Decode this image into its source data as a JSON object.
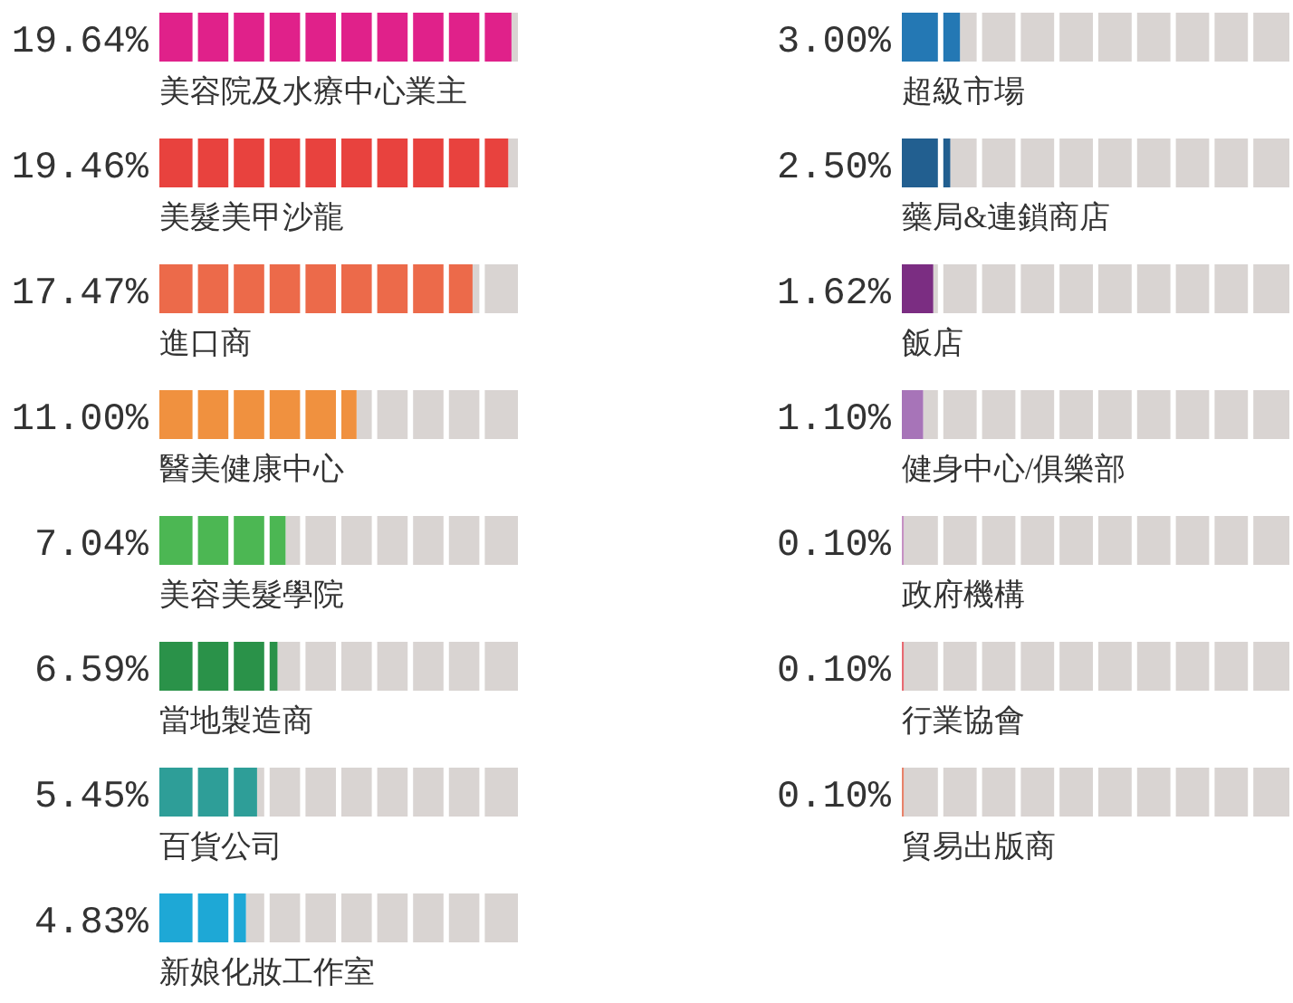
{
  "chart_data": [
    {
      "type": "bar",
      "orientation": "horizontal",
      "xlim": [
        0,
        20
      ],
      "tick_labels": "y",
      "categories": [
        "美容院及水療中心業主",
        "美髮美甲沙龍",
        "進口商",
        "醫美健康中心",
        "美容美髮學院",
        "當地製造商",
        "百貨公司",
        "新娘化妝工作室"
      ],
      "values": [
        19.64,
        19.46,
        17.47,
        11.0,
        7.04,
        6.59,
        5.45,
        4.83
      ],
      "value_labels": [
        "19.64%",
        "19.46%",
        "17.47%",
        "11.00%",
        "7.04%",
        "6.59%",
        "5.45%",
        "4.83%"
      ],
      "colors": [
        "#e0218a",
        "#e8423e",
        "#ec6a4a",
        "#f0913f",
        "#4cb753",
        "#2a9249",
        "#2e9e98",
        "#1ea8d6"
      ]
    },
    {
      "type": "bar",
      "orientation": "horizontal",
      "xlim": [
        0,
        20
      ],
      "tick_labels": "y",
      "categories": [
        "超級市場",
        "藥局&連鎖商店",
        "飯店",
        "健身中心/俱樂部",
        "政府機構",
        "行業協會",
        "貿易出版商"
      ],
      "values": [
        3.0,
        2.5,
        1.62,
        1.1,
        0.1,
        0.1,
        0.1
      ],
      "value_labels": [
        "3.00%",
        "2.50%",
        "1.62%",
        "1.10%",
        "0.10%",
        "0.10%",
        "0.10%"
      ],
      "colors": [
        "#2478b4",
        "#225f90",
        "#7b2d82",
        "#a774b8",
        "#c590c3",
        "#e86a72",
        "#e8826a"
      ]
    }
  ]
}
